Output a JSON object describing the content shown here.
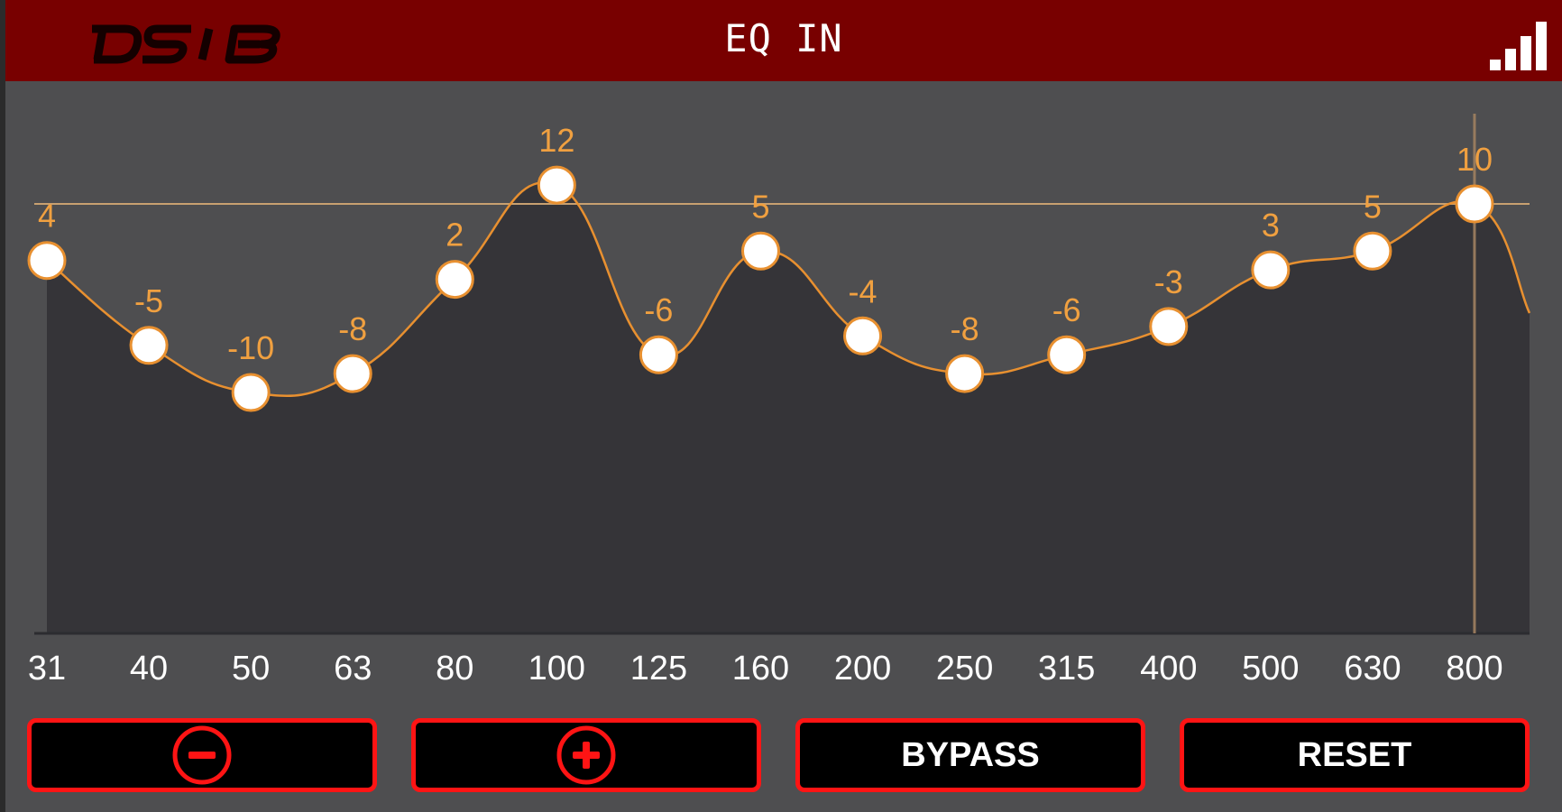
{
  "header": {
    "logo_text": "DS18",
    "title": "EQ IN",
    "signal_icon": "signal-bars-icon"
  },
  "chart_data": {
    "type": "line",
    "categories": [
      "31",
      "40",
      "50",
      "63",
      "80",
      "100",
      "125",
      "160",
      "200",
      "250",
      "315",
      "400",
      "500",
      "630",
      "800"
    ],
    "values": [
      4,
      -5,
      -10,
      -8,
      2,
      12,
      -6,
      5,
      -4,
      -8,
      -6,
      -3,
      3,
      5,
      10
    ],
    "selected_band": "800",
    "colors": {
      "line": "#e89030",
      "label": "#f0a040",
      "fill": "#353438",
      "background": "#4e4e50",
      "point_fill": "#ffffff"
    }
  },
  "buttons": {
    "minus": {
      "icon": "minus-circle-icon"
    },
    "plus": {
      "icon": "plus-circle-icon"
    },
    "bypass_label": "BYPASS",
    "reset_label": "RESET",
    "colors": {
      "border": "#ff1414",
      "background": "#000000"
    }
  }
}
